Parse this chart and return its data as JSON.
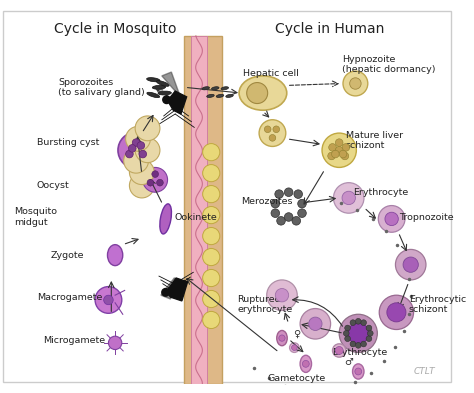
{
  "title_left": "Cycle in Mosquito",
  "title_right": "Cycle in Human",
  "bg_color": "#ffffff",
  "text_color": "#222222",
  "wall_tan": "#deb887",
  "wall_tan_edge": "#c4a060",
  "wall_pink": "#f0b0c0",
  "wall_pink_edge": "#d890a8",
  "wall_dot_fill": "#e8d898",
  "wall_dot_edge": "#c8b060",
  "cell_purple_light": "#c890c8",
  "cell_purple_mid": "#b070c0",
  "cell_purple_dark": "#9050a8",
  "cell_tan_fill": "#e8d898",
  "cell_tan_edge": "#c0a850",
  "cell_pink_fill": "#e8c0d0",
  "cell_pink_edge": "#b890a8",
  "watermark": "CTLT"
}
